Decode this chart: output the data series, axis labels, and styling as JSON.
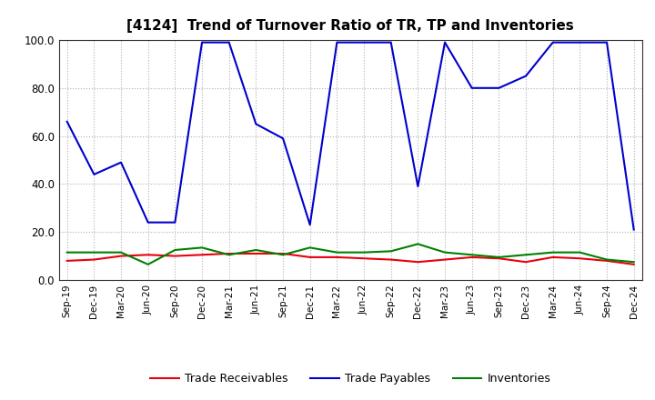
{
  "title": "[4124]  Trend of Turnover Ratio of TR, TP and Inventories",
  "x_labels": [
    "Sep-19",
    "Dec-19",
    "Mar-20",
    "Jun-20",
    "Sep-20",
    "Dec-20",
    "Mar-21",
    "Jun-21",
    "Sep-21",
    "Dec-21",
    "Mar-22",
    "Jun-22",
    "Sep-22",
    "Dec-22",
    "Mar-23",
    "Jun-23",
    "Sep-23",
    "Dec-23",
    "Mar-24",
    "Jun-24",
    "Sep-24",
    "Dec-24"
  ],
  "trade_receivables": [
    8.0,
    8.5,
    10.0,
    10.5,
    10.0,
    10.5,
    11.0,
    11.0,
    11.0,
    9.5,
    9.5,
    9.0,
    8.5,
    7.5,
    8.5,
    9.5,
    9.0,
    7.5,
    9.5,
    9.0,
    8.0,
    6.5
  ],
  "trade_payables": [
    66.0,
    44.0,
    49.0,
    24.0,
    24.0,
    99.0,
    99.0,
    65.0,
    59.0,
    23.0,
    99.0,
    99.0,
    99.0,
    39.0,
    99.0,
    80.0,
    80.0,
    85.0,
    99.0,
    99.0,
    99.0,
    21.0
  ],
  "inventories": [
    11.5,
    11.5,
    11.5,
    6.5,
    12.5,
    13.5,
    10.5,
    12.5,
    10.5,
    13.5,
    11.5,
    11.5,
    12.0,
    15.0,
    11.5,
    10.5,
    9.5,
    10.5,
    11.5,
    11.5,
    8.5,
    7.5
  ],
  "ylim": [
    0.0,
    100.0
  ],
  "yticks": [
    0.0,
    20.0,
    40.0,
    60.0,
    80.0,
    100.0
  ],
  "color_tr": "#e8000d",
  "color_tp": "#0000cd",
  "color_inv": "#008000",
  "bg_color": "#ffffff",
  "plot_bg_color": "#ffffff",
  "grid_color": "#b0b0b0",
  "legend_labels": [
    "Trade Receivables",
    "Trade Payables",
    "Inventories"
  ]
}
